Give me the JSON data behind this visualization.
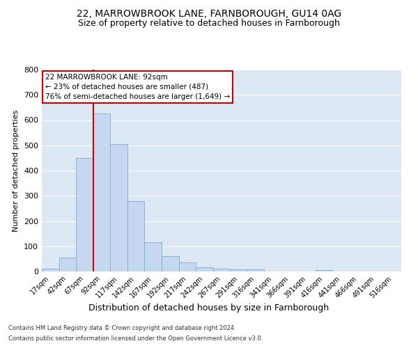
{
  "title": "22, MARROWBROOK LANE, FARNBOROUGH, GU14 0AG",
  "subtitle": "Size of property relative to detached houses in Farnborough",
  "xlabel": "Distribution of detached houses by size in Farnborough",
  "ylabel": "Number of detached properties",
  "bar_labels": [
    "17sqm",
    "42sqm",
    "67sqm",
    "92sqm",
    "117sqm",
    "142sqm",
    "167sqm",
    "192sqm",
    "217sqm",
    "242sqm",
    "267sqm",
    "291sqm",
    "316sqm",
    "341sqm",
    "366sqm",
    "391sqm",
    "416sqm",
    "441sqm",
    "466sqm",
    "491sqm",
    "516sqm"
  ],
  "bar_values": [
    10,
    55,
    450,
    625,
    505,
    280,
    115,
    62,
    35,
    17,
    12,
    8,
    8,
    0,
    0,
    0,
    6,
    0,
    0,
    0,
    0
  ],
  "bar_color": "#c5d8f0",
  "bar_edge_color": "#7aadd4",
  "background_color": "#dde8f5",
  "vline_color": "#cc0000",
  "vline_index": 3,
  "annotation_text": "22 MARROWBROOK LANE: 92sqm\n← 23% of detached houses are smaller (487)\n76% of semi-detached houses are larger (1,649) →",
  "annotation_box_color": "#cc0000",
  "ylim": [
    0,
    800
  ],
  "yticks": [
    0,
    100,
    200,
    300,
    400,
    500,
    600,
    700,
    800
  ],
  "footer1": "Contains HM Land Registry data © Crown copyright and database right 2024.",
  "footer2": "Contains public sector information licensed under the Open Government Licence v3.0.",
  "title_fontsize": 10,
  "subtitle_fontsize": 9,
  "grid_color": "#ffffff"
}
